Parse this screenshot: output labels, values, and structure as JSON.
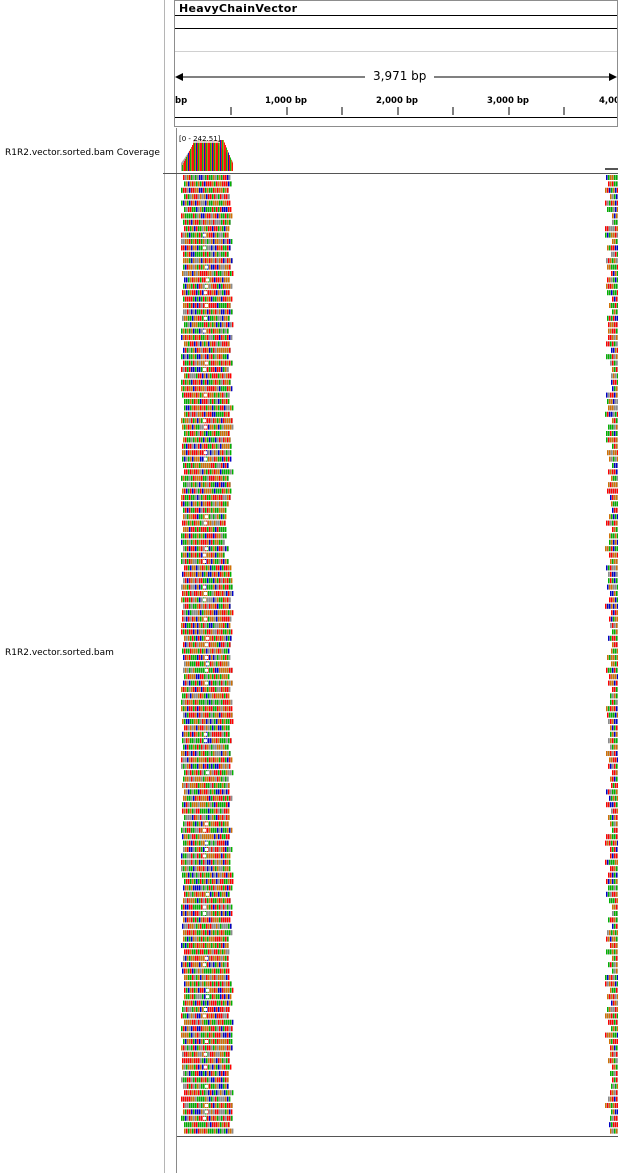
{
  "genome": {
    "title": "HeavyChainVector"
  },
  "ruler": {
    "span_label": "3,971 bp",
    "tick_labels": [
      "bp",
      "1,000 bp",
      "2,000 bp",
      "3,000 bp",
      "4,00"
    ]
  },
  "tracks": {
    "coverage": {
      "name": "R1R2.vector.sorted.bam Coverage",
      "range_label": "[0 - 242.51]"
    },
    "alignment": {
      "name": "R1R2.vector.sorted.bam"
    }
  },
  "colors": {
    "A": "#00b300",
    "C": "#0000c8",
    "G": "#d17105",
    "T": "#ff0000",
    "coverage_fill": "#aaaaaa",
    "read_body": "#b9b9b9",
    "mismatch_gray": "#8c8c8c"
  }
}
